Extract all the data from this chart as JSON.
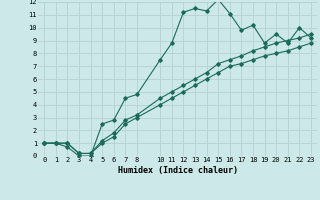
{
  "title": "",
  "xlabel": "Humidex (Indice chaleur)",
  "background_color": "#cce8e8",
  "grid_color": "#b8d4d4",
  "line_color": "#1a6b5a",
  "xlim": [
    -0.5,
    23.5
  ],
  "ylim": [
    0,
    12
  ],
  "xticks": [
    0,
    1,
    2,
    3,
    4,
    5,
    6,
    7,
    8,
    10,
    11,
    12,
    13,
    14,
    15,
    16,
    17,
    18,
    19,
    20,
    21,
    22,
    23
  ],
  "yticks": [
    0,
    1,
    2,
    3,
    4,
    5,
    6,
    7,
    8,
    9,
    10,
    11,
    12
  ],
  "line1_x": [
    0,
    1,
    2,
    3,
    4,
    5,
    6,
    7,
    8,
    10,
    11,
    12,
    13,
    14,
    15,
    16,
    17,
    18,
    19,
    20,
    21,
    22,
    23
  ],
  "line1_y": [
    1,
    1,
    0.7,
    0,
    0,
    2.5,
    2.8,
    4.5,
    4.8,
    7.5,
    8.8,
    11.2,
    11.5,
    11.3,
    12.2,
    11.1,
    9.8,
    10.2,
    8.8,
    9.5,
    8.8,
    10.0,
    9.2
  ],
  "line2_x": [
    0,
    1,
    2,
    3,
    4,
    5,
    6,
    7,
    8,
    10,
    11,
    12,
    13,
    14,
    15,
    16,
    17,
    18,
    19,
    20,
    21,
    22,
    23
  ],
  "line2_y": [
    1,
    1,
    1,
    0.2,
    0.2,
    1.0,
    1.5,
    2.5,
    3.0,
    4.0,
    4.5,
    5.0,
    5.5,
    6.0,
    6.5,
    7.0,
    7.2,
    7.5,
    7.8,
    8.0,
    8.2,
    8.5,
    8.8
  ],
  "line3_x": [
    0,
    1,
    2,
    3,
    4,
    5,
    6,
    7,
    8,
    10,
    11,
    12,
    13,
    14,
    15,
    16,
    17,
    18,
    19,
    20,
    21,
    22,
    23
  ],
  "line3_y": [
    1,
    1,
    1,
    0.2,
    0.2,
    1.2,
    1.8,
    2.8,
    3.2,
    4.5,
    5.0,
    5.5,
    6.0,
    6.5,
    7.2,
    7.5,
    7.8,
    8.2,
    8.5,
    8.8,
    9.0,
    9.2,
    9.5
  ]
}
